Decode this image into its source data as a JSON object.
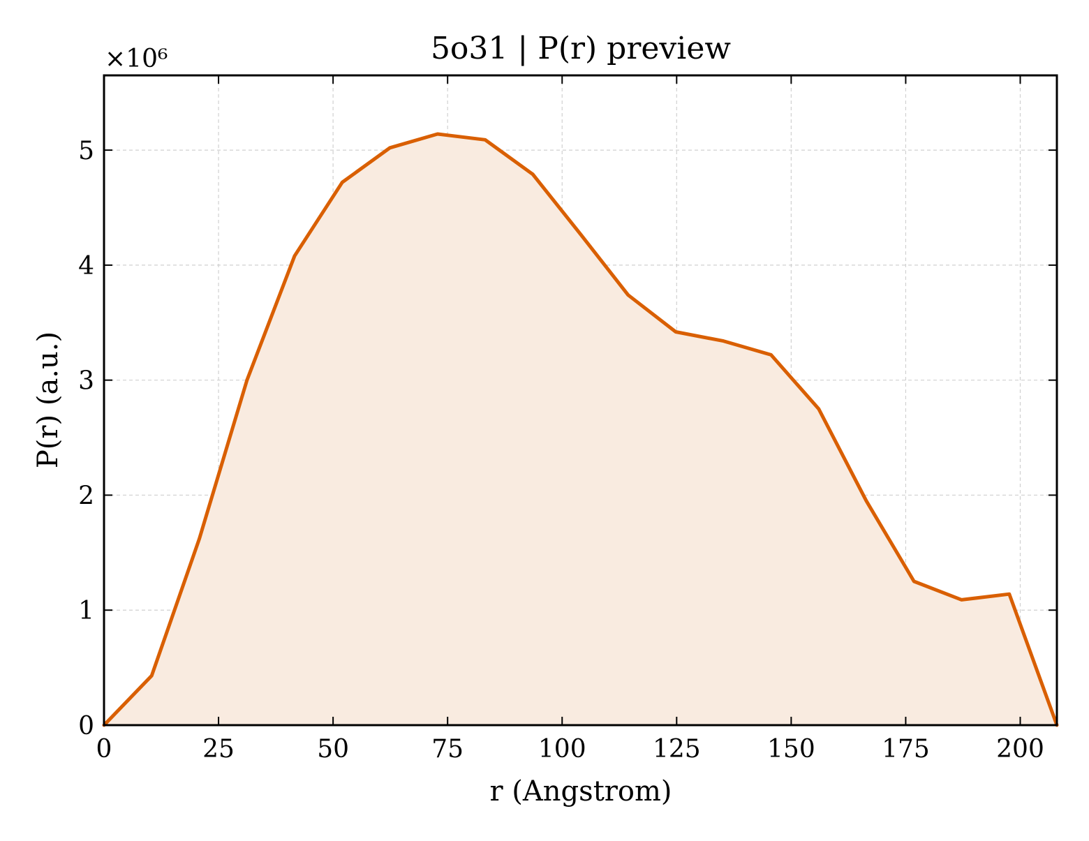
{
  "chart_data": {
    "type": "area",
    "title": "5o31 | P(r) preview",
    "xlabel": "r (Angstrom)",
    "ylabel": "P(r) (a.u.)",
    "y_multiplier_label": "×10⁶",
    "y_scale_factor": 1000000,
    "xlim": [
      0,
      208
    ],
    "ylim": [
      0,
      5.65
    ],
    "x_ticks": [
      0,
      25,
      50,
      75,
      100,
      125,
      150,
      175,
      200
    ],
    "y_ticks": [
      0,
      1,
      2,
      3,
      4,
      5
    ],
    "grid": true,
    "line_color": "#d95f02",
    "fill_color": "#f9ebe0",
    "series": [
      {
        "x": [
          0,
          10.4,
          20.8,
          31.2,
          41.6,
          52.0,
          62.4,
          72.8,
          83.2,
          93.6,
          104.0,
          114.4,
          124.8,
          135.2,
          145.6,
          156.0,
          166.4,
          176.8,
          187.2,
          197.6,
          208.0
        ],
        "y": [
          0,
          0.43,
          1.62,
          3.0,
          4.08,
          4.72,
          5.02,
          5.14,
          5.09,
          4.79,
          4.27,
          3.74,
          3.42,
          3.34,
          3.22,
          2.75,
          1.95,
          1.25,
          1.09,
          1.14,
          0
        ]
      }
    ]
  }
}
